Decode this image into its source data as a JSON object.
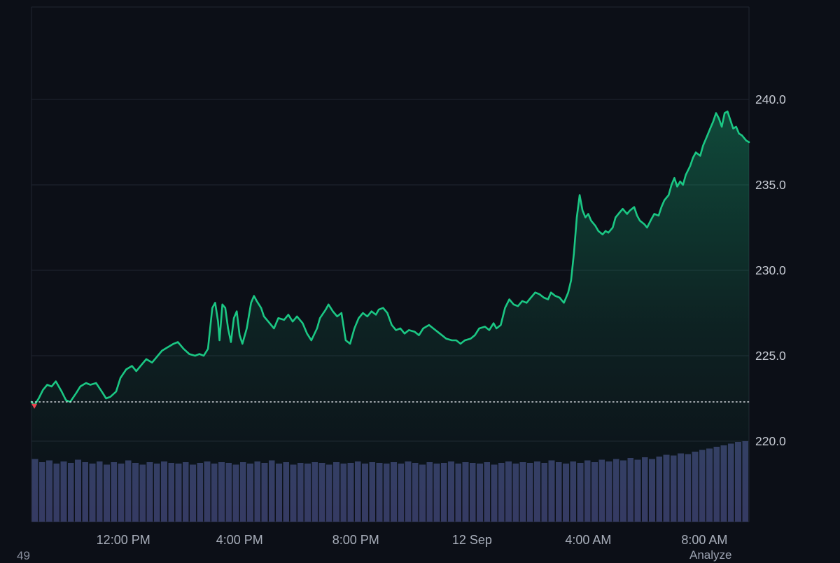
{
  "chart_data": {
    "type": "area",
    "xlabel": "",
    "ylabel": "",
    "x_domain_hours": [
      0,
      25
    ],
    "x_ticks": [
      {
        "t": 3.2,
        "label": "12:00 PM"
      },
      {
        "t": 7.25,
        "label": "4:00 PM"
      },
      {
        "t": 11.3,
        "label": "8:00 PM"
      },
      {
        "t": 15.35,
        "label": "12 Sep"
      },
      {
        "t": 19.4,
        "label": "4:00 AM"
      },
      {
        "t": 23.45,
        "label": "8:00 AM"
      }
    ],
    "y_ticks": [
      {
        "value": 240.0,
        "label": "240.0"
      },
      {
        "value": 235.0,
        "label": "235.0"
      },
      {
        "value": 230.0,
        "label": "230.0"
      },
      {
        "value": 225.0,
        "label": "225.0"
      },
      {
        "value": 220.0,
        "label": "220.0"
      }
    ],
    "y_range_visible": [
      219.3,
      245.4
    ],
    "prev_close": {
      "value": 222.3,
      "style": "dotted"
    },
    "start_marker": {
      "t": 0.1,
      "price": 222.1
    },
    "series": [
      [
        0.0,
        222.3
      ],
      [
        0.1,
        222.1
      ],
      [
        0.25,
        222.5
      ],
      [
        0.4,
        223.0
      ],
      [
        0.55,
        223.3
      ],
      [
        0.7,
        223.2
      ],
      [
        0.85,
        223.5
      ],
      [
        1.05,
        222.9
      ],
      [
        1.2,
        222.4
      ],
      [
        1.35,
        222.3
      ],
      [
        1.55,
        222.8
      ],
      [
        1.7,
        223.2
      ],
      [
        1.9,
        223.4
      ],
      [
        2.05,
        223.3
      ],
      [
        2.25,
        223.4
      ],
      [
        2.45,
        222.9
      ],
      [
        2.6,
        222.5
      ],
      [
        2.75,
        222.6
      ],
      [
        2.95,
        222.9
      ],
      [
        3.1,
        223.7
      ],
      [
        3.3,
        224.2
      ],
      [
        3.5,
        224.4
      ],
      [
        3.65,
        224.1
      ],
      [
        3.85,
        224.5
      ],
      [
        4.0,
        224.8
      ],
      [
        4.2,
        224.6
      ],
      [
        4.4,
        225.0
      ],
      [
        4.55,
        225.3
      ],
      [
        4.75,
        225.5
      ],
      [
        4.95,
        225.7
      ],
      [
        5.1,
        225.8
      ],
      [
        5.3,
        225.4
      ],
      [
        5.5,
        225.1
      ],
      [
        5.7,
        225.0
      ],
      [
        5.85,
        225.1
      ],
      [
        6.0,
        225.0
      ],
      [
        6.15,
        225.4
      ],
      [
        6.3,
        227.8
      ],
      [
        6.4,
        228.1
      ],
      [
        6.5,
        227.0
      ],
      [
        6.55,
        225.9
      ],
      [
        6.65,
        228.0
      ],
      [
        6.75,
        227.8
      ],
      [
        6.85,
        226.6
      ],
      [
        6.95,
        225.8
      ],
      [
        7.05,
        227.2
      ],
      [
        7.15,
        227.6
      ],
      [
        7.25,
        226.2
      ],
      [
        7.35,
        225.7
      ],
      [
        7.5,
        226.6
      ],
      [
        7.65,
        228.1
      ],
      [
        7.75,
        228.5
      ],
      [
        7.85,
        228.2
      ],
      [
        8.0,
        227.8
      ],
      [
        8.1,
        227.3
      ],
      [
        8.3,
        226.9
      ],
      [
        8.45,
        226.6
      ],
      [
        8.6,
        227.2
      ],
      [
        8.8,
        227.1
      ],
      [
        8.95,
        227.4
      ],
      [
        9.1,
        227.0
      ],
      [
        9.25,
        227.3
      ],
      [
        9.45,
        226.9
      ],
      [
        9.6,
        226.3
      ],
      [
        9.75,
        225.9
      ],
      [
        9.95,
        226.6
      ],
      [
        10.05,
        227.2
      ],
      [
        10.25,
        227.7
      ],
      [
        10.35,
        228.0
      ],
      [
        10.5,
        227.6
      ],
      [
        10.65,
        227.3
      ],
      [
        10.8,
        227.5
      ],
      [
        10.95,
        225.9
      ],
      [
        11.1,
        225.7
      ],
      [
        11.25,
        226.6
      ],
      [
        11.4,
        227.2
      ],
      [
        11.55,
        227.5
      ],
      [
        11.7,
        227.3
      ],
      [
        11.85,
        227.6
      ],
      [
        12.0,
        227.4
      ],
      [
        12.1,
        227.7
      ],
      [
        12.25,
        227.8
      ],
      [
        12.4,
        227.5
      ],
      [
        12.55,
        226.8
      ],
      [
        12.7,
        226.5
      ],
      [
        12.85,
        226.6
      ],
      [
        13.0,
        226.3
      ],
      [
        13.15,
        226.5
      ],
      [
        13.35,
        226.4
      ],
      [
        13.5,
        226.2
      ],
      [
        13.65,
        226.6
      ],
      [
        13.85,
        226.8
      ],
      [
        14.0,
        226.6
      ],
      [
        14.15,
        226.4
      ],
      [
        14.3,
        226.2
      ],
      [
        14.45,
        226.0
      ],
      [
        14.65,
        225.9
      ],
      [
        14.8,
        225.9
      ],
      [
        14.95,
        225.7
      ],
      [
        15.1,
        225.9
      ],
      [
        15.3,
        226.0
      ],
      [
        15.45,
        226.2
      ],
      [
        15.6,
        226.6
      ],
      [
        15.8,
        226.7
      ],
      [
        15.95,
        226.5
      ],
      [
        16.1,
        226.9
      ],
      [
        16.2,
        226.6
      ],
      [
        16.35,
        226.8
      ],
      [
        16.5,
        227.8
      ],
      [
        16.65,
        228.3
      ],
      [
        16.8,
        228.0
      ],
      [
        16.95,
        227.9
      ],
      [
        17.1,
        228.2
      ],
      [
        17.25,
        228.1
      ],
      [
        17.4,
        228.4
      ],
      [
        17.55,
        228.7
      ],
      [
        17.7,
        228.6
      ],
      [
        17.85,
        228.4
      ],
      [
        18.0,
        228.3
      ],
      [
        18.1,
        228.7
      ],
      [
        18.25,
        228.5
      ],
      [
        18.4,
        228.4
      ],
      [
        18.55,
        228.1
      ],
      [
        18.7,
        228.7
      ],
      [
        18.8,
        229.4
      ],
      [
        18.9,
        231.0
      ],
      [
        19.0,
        233.1
      ],
      [
        19.1,
        234.4
      ],
      [
        19.2,
        233.5
      ],
      [
        19.3,
        233.1
      ],
      [
        19.4,
        233.3
      ],
      [
        19.5,
        232.9
      ],
      [
        19.65,
        232.6
      ],
      [
        19.75,
        232.3
      ],
      [
        19.9,
        232.1
      ],
      [
        20.0,
        232.3
      ],
      [
        20.1,
        232.2
      ],
      [
        20.25,
        232.5
      ],
      [
        20.35,
        233.1
      ],
      [
        20.5,
        233.4
      ],
      [
        20.6,
        233.6
      ],
      [
        20.75,
        233.3
      ],
      [
        20.85,
        233.5
      ],
      [
        21.0,
        233.7
      ],
      [
        21.1,
        233.2
      ],
      [
        21.2,
        232.9
      ],
      [
        21.35,
        232.7
      ],
      [
        21.45,
        232.5
      ],
      [
        21.6,
        233.0
      ],
      [
        21.7,
        233.3
      ],
      [
        21.85,
        233.2
      ],
      [
        21.95,
        233.7
      ],
      [
        22.05,
        234.1
      ],
      [
        22.2,
        234.4
      ],
      [
        22.3,
        235.0
      ],
      [
        22.4,
        235.4
      ],
      [
        22.5,
        234.9
      ],
      [
        22.6,
        235.2
      ],
      [
        22.7,
        235.0
      ],
      [
        22.8,
        235.6
      ],
      [
        22.95,
        236.1
      ],
      [
        23.05,
        236.6
      ],
      [
        23.15,
        236.9
      ],
      [
        23.3,
        236.7
      ],
      [
        23.4,
        237.3
      ],
      [
        23.55,
        237.9
      ],
      [
        23.65,
        238.3
      ],
      [
        23.75,
        238.7
      ],
      [
        23.85,
        239.2
      ],
      [
        23.95,
        238.9
      ],
      [
        24.05,
        238.4
      ],
      [
        24.15,
        239.2
      ],
      [
        24.25,
        239.3
      ],
      [
        24.35,
        238.8
      ],
      [
        24.45,
        238.3
      ],
      [
        24.55,
        238.4
      ],
      [
        24.65,
        238.0
      ],
      [
        24.75,
        237.9
      ],
      [
        24.9,
        237.6
      ],
      [
        25.0,
        237.5
      ]
    ],
    "volume_normalized": [
      0.78,
      0.74,
      0.76,
      0.72,
      0.75,
      0.73,
      0.77,
      0.74,
      0.72,
      0.75,
      0.71,
      0.74,
      0.72,
      0.76,
      0.73,
      0.71,
      0.74,
      0.72,
      0.75,
      0.73,
      0.72,
      0.74,
      0.71,
      0.73,
      0.75,
      0.72,
      0.74,
      0.73,
      0.71,
      0.74,
      0.72,
      0.75,
      0.73,
      0.76,
      0.72,
      0.74,
      0.71,
      0.73,
      0.72,
      0.74,
      0.73,
      0.71,
      0.74,
      0.72,
      0.73,
      0.75,
      0.72,
      0.74,
      0.73,
      0.72,
      0.74,
      0.72,
      0.75,
      0.73,
      0.71,
      0.74,
      0.72,
      0.73,
      0.75,
      0.72,
      0.74,
      0.73,
      0.72,
      0.74,
      0.71,
      0.73,
      0.75,
      0.72,
      0.74,
      0.73,
      0.75,
      0.73,
      0.76,
      0.74,
      0.72,
      0.75,
      0.73,
      0.76,
      0.74,
      0.77,
      0.75,
      0.78,
      0.76,
      0.79,
      0.77,
      0.8,
      0.78,
      0.81,
      0.83,
      0.82,
      0.85,
      0.84,
      0.87,
      0.89,
      0.91,
      0.93,
      0.95,
      0.97,
      0.99,
      1.0
    ],
    "colors": {
      "background": "#0c0f17",
      "line": "#1bc784",
      "area_fill_top": "rgba(24,200,134,0.30)",
      "grid": "#1f2430",
      "price_label": "#c6cad3",
      "time_label": "#a8aeba",
      "volume_bar": "#353b63",
      "prev_close_dots": "#e3e6ec",
      "start_marker": "#ef4550"
    }
  },
  "footer": {
    "left_text": "49",
    "right_text": "Analyze"
  }
}
